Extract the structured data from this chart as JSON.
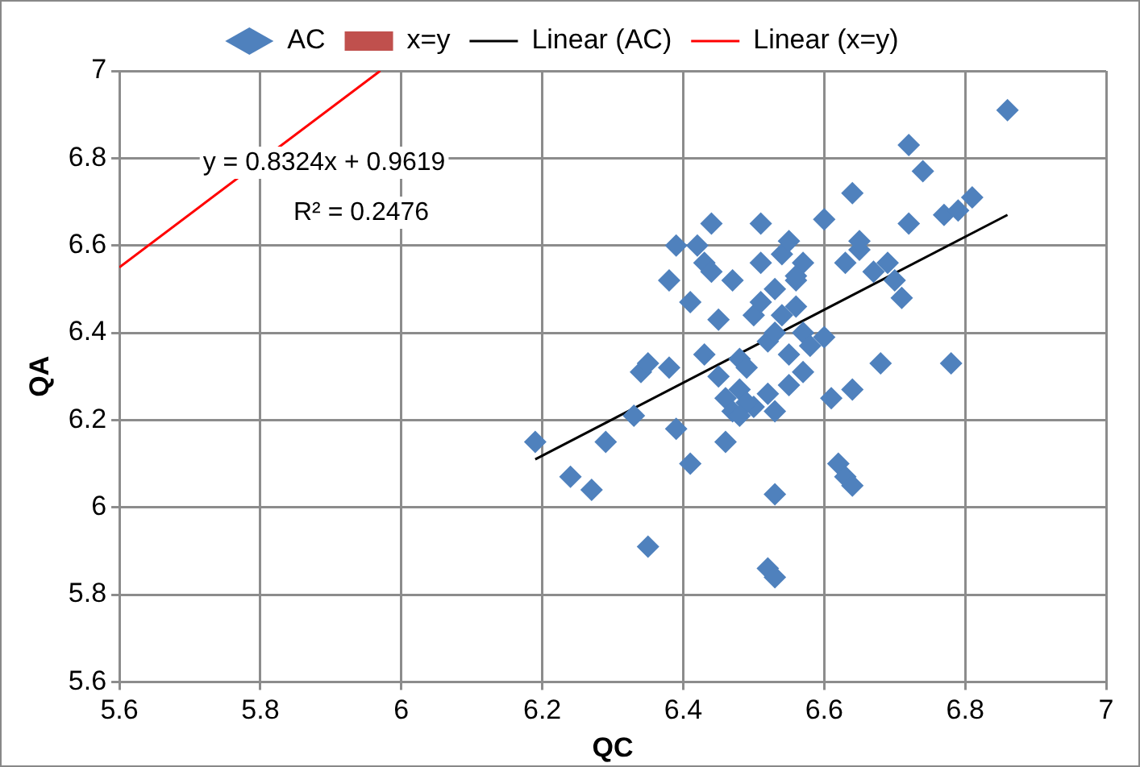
{
  "chart_data": {
    "type": "scatter",
    "xlabel": "QC",
    "ylabel": "QA",
    "xlim": [
      5.6,
      7
    ],
    "ylim": [
      5.6,
      7
    ],
    "xticks": [
      5.6,
      5.8,
      6,
      6.2,
      6.4,
      6.6,
      6.8,
      7
    ],
    "yticks": [
      5.6,
      5.8,
      6,
      6.2,
      6.4,
      6.6,
      6.8,
      7
    ],
    "grid": true,
    "legend": "top",
    "annotations": [
      "y = 0.8324x + 0.9619",
      "R² = 0.2476"
    ],
    "series": [
      {
        "name": "AC",
        "marker": "diamond",
        "color": "#4f81bd",
        "x": [
          6.19,
          6.24,
          6.27,
          6.29,
          6.33,
          6.34,
          6.35,
          6.35,
          6.38,
          6.39,
          6.38,
          6.39,
          6.41,
          6.41,
          6.42,
          6.43,
          6.44,
          6.44,
          6.43,
          6.45,
          6.45,
          6.46,
          6.46,
          6.47,
          6.47,
          6.48,
          6.48,
          6.49,
          6.5,
          6.5,
          6.51,
          6.51,
          6.51,
          6.52,
          6.52,
          6.52,
          6.53,
          6.53,
          6.53,
          6.53,
          6.54,
          6.54,
          6.55,
          6.55,
          6.55,
          6.56,
          6.56,
          6.57,
          6.57,
          6.57,
          6.58,
          6.6,
          6.6,
          6.61,
          6.62,
          6.63,
          6.64,
          6.63,
          6.64,
          6.64,
          6.65,
          6.65,
          6.67,
          6.68,
          6.69,
          6.7,
          6.71,
          6.72,
          6.72,
          6.74,
          6.77,
          6.78,
          6.79,
          6.81,
          6.86,
          6.49,
          6.53,
          6.56,
          6.48
        ],
        "values": [
          6.15,
          6.07,
          6.04,
          6.15,
          6.21,
          6.31,
          6.33,
          5.91,
          6.52,
          6.6,
          6.32,
          6.18,
          6.47,
          6.1,
          6.6,
          6.56,
          6.65,
          6.54,
          6.35,
          6.43,
          6.3,
          6.15,
          6.25,
          6.52,
          6.22,
          6.34,
          6.27,
          6.32,
          6.23,
          6.44,
          6.65,
          6.56,
          6.47,
          6.38,
          6.26,
          5.86,
          5.84,
          6.03,
          6.22,
          6.5,
          6.58,
          6.44,
          6.61,
          6.35,
          6.28,
          6.52,
          6.46,
          6.56,
          6.4,
          6.31,
          6.37,
          6.66,
          6.39,
          6.25,
          6.1,
          6.07,
          6.05,
          6.56,
          6.72,
          6.27,
          6.59,
          6.61,
          6.54,
          6.33,
          6.56,
          6.52,
          6.48,
          6.83,
          6.65,
          6.77,
          6.67,
          6.33,
          6.68,
          6.71,
          6.91,
          6.24,
          6.4,
          6.53,
          6.21
        ]
      },
      {
        "name": "x=y",
        "marker": "square",
        "color": "#c0504d"
      },
      {
        "name": "Linear (AC)",
        "type": "line",
        "marker": "none",
        "color": "#000000",
        "x": [
          6.19,
          6.86
        ],
        "values": [
          6.11,
          6.67
        ]
      },
      {
        "name": "Linear (x=y)",
        "type": "line",
        "marker": "none",
        "color": "#ff0000",
        "x": [
          5.6,
          5.97
        ],
        "values": [
          6.55,
          7
        ]
      }
    ]
  }
}
